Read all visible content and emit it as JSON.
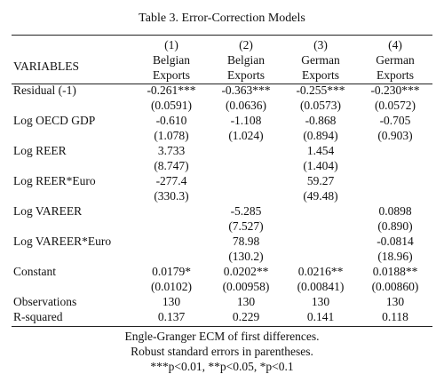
{
  "caption": "Table 3. Error-Correction Models",
  "header": {
    "variables_label": "VARIABLES",
    "columns": [
      {
        "num": "(1)",
        "line1": "Belgian",
        "line2": "Exports"
      },
      {
        "num": "(2)",
        "line1": "Belgian",
        "line2": "Exports"
      },
      {
        "num": "(3)",
        "line1": "German",
        "line2": "Exports"
      },
      {
        "num": "(4)",
        "line1": "German",
        "line2": "Exports"
      }
    ]
  },
  "rows": [
    {
      "var": "Residual (-1)",
      "coef": [
        "-0.261***",
        "-0.363***",
        "-0.255***",
        "-0.230***"
      ],
      "se": [
        "(0.0591)",
        "(0.0636)",
        "(0.0573)",
        "(0.0572)"
      ]
    },
    {
      "var": "Log OECD GDP",
      "coef": [
        "-0.610",
        "-1.108",
        "-0.868",
        "-0.705"
      ],
      "se": [
        "(1.078)",
        "(1.024)",
        "(0.894)",
        "(0.903)"
      ]
    },
    {
      "var": "Log REER",
      "coef": [
        "3.733",
        "",
        "1.454",
        ""
      ],
      "se": [
        "(8.747)",
        "",
        "(1.404)",
        ""
      ]
    },
    {
      "var": "Log REER*Euro",
      "coef": [
        "-277.4",
        "",
        "59.27",
        ""
      ],
      "se": [
        "(330.3)",
        "",
        "(49.48)",
        ""
      ]
    },
    {
      "var": "Log VAREER",
      "coef": [
        "",
        "-5.285",
        "",
        "0.0898"
      ],
      "se": [
        "",
        "(7.527)",
        "",
        "(0.890)"
      ]
    },
    {
      "var": "Log VAREER*Euro",
      "coef": [
        "",
        "78.98",
        "",
        "-0.0814"
      ],
      "se": [
        "",
        "(130.2)",
        "",
        "(18.96)"
      ]
    },
    {
      "var": "Constant",
      "coef": [
        "0.0179*",
        "0.0202**",
        "0.0216**",
        "0.0188**"
      ],
      "se": [
        "(0.0102)",
        "(0.00958)",
        "(0.00841)",
        "(0.00860)"
      ]
    }
  ],
  "stats": [
    {
      "var": "Observations",
      "values": [
        "130",
        "130",
        "130",
        "130"
      ]
    },
    {
      "var": "R-squared",
      "values": [
        "0.137",
        "0.229",
        "0.141",
        "0.118"
      ]
    }
  ],
  "notes": [
    "Engle-Granger ECM of first differences.",
    "Robust standard errors in parentheses.",
    "***p<0.01, **p<0.05, *p<0.1"
  ]
}
